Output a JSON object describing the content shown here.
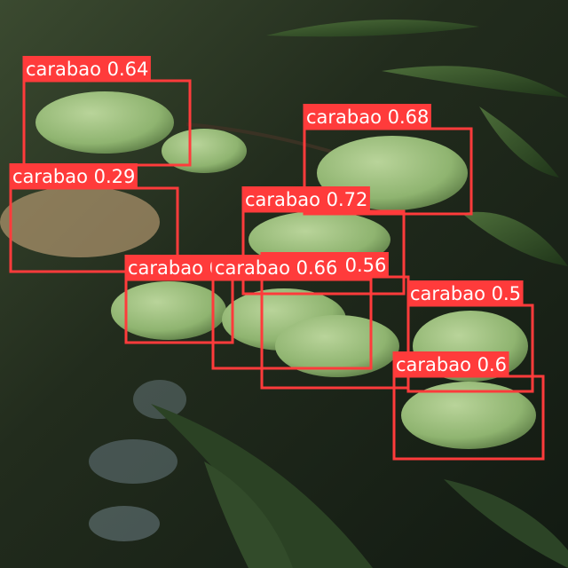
{
  "detections": [
    {
      "label": "carabao 0.64"
    },
    {
      "label": "carabao 0.68"
    },
    {
      "label": "carabao 0.29"
    },
    {
      "label": "carabao 0.72"
    },
    {
      "label": "carabao 0.58"
    },
    {
      "label": "carabao 0.56"
    },
    {
      "label": "carabao 0.66"
    },
    {
      "label": "carabao 0.5"
    },
    {
      "label": "carabao 0.6"
    }
  ]
}
